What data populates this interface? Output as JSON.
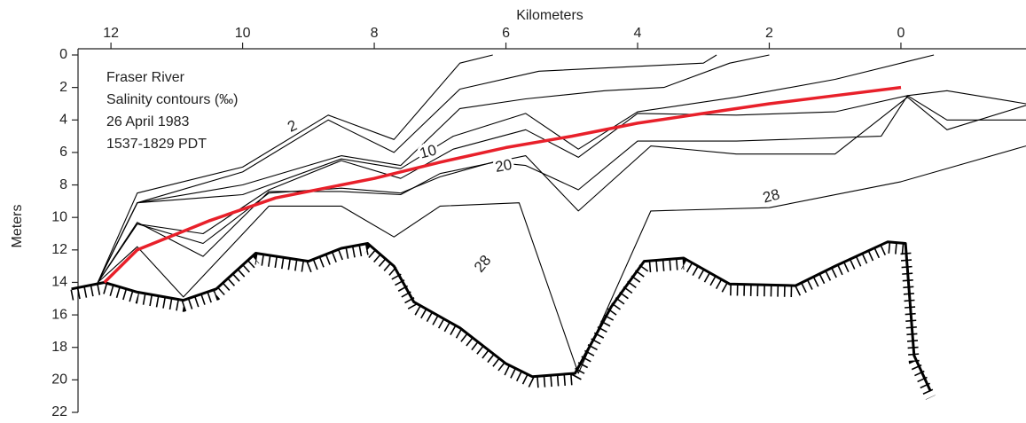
{
  "chart_data": {
    "type": "line",
    "x_label": "Kilometers",
    "y_label": "Meters",
    "annotations": [
      "Fraser River",
      "Salinity contours (‰)",
      "26 April 1983",
      "1537-1829 PDT"
    ],
    "contour_labels": [
      "2",
      "10",
      "20",
      "28",
      "28"
    ],
    "xlim": [
      12.5,
      -1.9
    ],
    "xticks": [
      12,
      10,
      8,
      6,
      4,
      2,
      0
    ],
    "ylim": [
      0,
      22
    ],
    "yticks": [
      0,
      2,
      4,
      6,
      8,
      10,
      12,
      14,
      16,
      18,
      20,
      22
    ],
    "y_inverted": true,
    "series": [
      {
        "color": "#000000",
        "x": [
          12.2,
          11.6,
          10.0,
          8.7,
          7.7,
          6.7,
          6.2
        ],
        "values": [
          14,
          8.5,
          6.9,
          3.7,
          5.2,
          0.5,
          0
        ]
      },
      {
        "color": "#000000",
        "x": [
          12.2,
          11.6,
          10.0,
          8.7,
          7.7,
          6.7,
          5.5,
          4.0,
          3.0,
          2.8
        ],
        "values": [
          14,
          9.1,
          7.2,
          4.0,
          6.0,
          2.1,
          1.0,
          0.7,
          0.5,
          0
        ]
      },
      {
        "color": "#000000",
        "x": [
          12.2,
          11.6,
          10.0,
          8.5,
          7.6,
          6.7,
          5.7,
          4.5,
          3.6,
          2.6,
          2.0
        ],
        "values": [
          14,
          9.1,
          8.0,
          6.2,
          6.8,
          3.3,
          2.7,
          2.2,
          2.0,
          0.5,
          0
        ]
      },
      {
        "color": "#000000",
        "x": [
          12.2,
          11.6,
          10.0,
          8.5,
          7.6,
          6.8,
          5.7,
          4.9,
          4.0,
          2.5,
          1.0,
          -0.1,
          -0.5
        ],
        "values": [
          14,
          9.1,
          8.6,
          6.4,
          7.0,
          5.0,
          3.6,
          5.8,
          3.5,
          2.6,
          1.5,
          0.4,
          0
        ]
      },
      {
        "color": "#000000",
        "x": [
          12.2,
          11.6,
          10.6,
          9.6,
          8.5,
          7.6,
          6.8,
          5.7,
          4.9,
          4.0,
          2.5,
          1.0,
          -0.1,
          -0.7,
          -1.9
        ],
        "values": [
          14,
          10.4,
          11.0,
          8.3,
          6.5,
          7.6,
          5.8,
          4.6,
          6.3,
          3.6,
          3.7,
          3.5,
          2.5,
          2.2,
          3.0
        ]
      },
      {
        "color": "#000000",
        "x": [
          12.2,
          11.6,
          10.6,
          9.6,
          8.5,
          7.6,
          7.0,
          5.7,
          4.9,
          3.8,
          2.5,
          1.0,
          -0.1,
          -0.7,
          -1.9
        ],
        "values": [
          14,
          10.3,
          12.4,
          8.4,
          8.4,
          8.6,
          7.3,
          6.2,
          9.6,
          5.6,
          6.1,
          6.1,
          2.6,
          4.6,
          3.1
        ]
      },
      {
        "color": "#000000",
        "x": [
          12.2,
          11.6,
          10.6,
          9.6,
          8.5,
          7.6,
          7.0,
          6.2,
          5.7,
          4.9,
          4.0,
          2.5,
          0.3,
          -0.1,
          -0.7,
          -1.9
        ],
        "values": [
          14,
          10.4,
          11.6,
          8.5,
          8.2,
          8.5,
          7.5,
          6.6,
          6.8,
          8.3,
          5.3,
          5.3,
          5.0,
          2.5,
          4.0,
          4.0
        ]
      },
      {
        "color": "#000000",
        "x": [
          12.2,
          11.6,
          10.9,
          9.6,
          8.5,
          7.7,
          7.0,
          5.8,
          4.9,
          3.8,
          2.0,
          0.0,
          -1.9
        ],
        "values": [
          14,
          11.8,
          14.9,
          9.3,
          9.3,
          11.2,
          9.3,
          9.1,
          19.6,
          9.6,
          9.4,
          7.8,
          5.6
        ]
      },
      {
        "color": "#e8202a",
        "x": [
          12.1,
          11.6,
          10.5,
          9.5,
          8.0,
          7.0,
          6.0,
          5.0,
          4.0,
          3.0,
          2.0,
          1.0,
          0.0
        ],
        "values": [
          14,
          12,
          10.2,
          8.8,
          7.6,
          6.6,
          5.7,
          5.0,
          4.2,
          3.6,
          3.0,
          2.5,
          2.0
        ]
      },
      {
        "color": "#000000",
        "hatched": true,
        "x": [
          12.6,
          12.1,
          11.6,
          10.9,
          10.4,
          9.8,
          9.0,
          8.5,
          8.1,
          7.7,
          7.4,
          6.7,
          6.0,
          5.6,
          4.95,
          4.4,
          3.9,
          3.3,
          2.6,
          1.6,
          1.0,
          0.2,
          -0.07,
          -0.2,
          -0.45
        ],
        "values": [
          14.4,
          14,
          14.6,
          15.1,
          14.4,
          12.2,
          12.7,
          11.9,
          11.6,
          13,
          15.2,
          16.8,
          19,
          19.8,
          19.6,
          15.5,
          12.7,
          12.5,
          14.1,
          14.2,
          13,
          11.5,
          11.6,
          18.5,
          20.7
        ]
      }
    ]
  }
}
